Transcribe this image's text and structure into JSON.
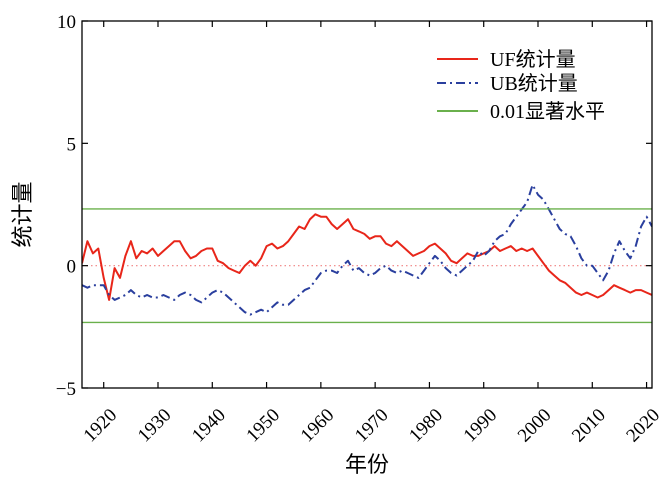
{
  "chart_data": {
    "type": "line",
    "xlabel": "年份",
    "ylabel": "统计量",
    "xlim": [
      1916,
      2021
    ],
    "ylim": [
      -5,
      10
    ],
    "xticks": [
      "1920",
      "1930",
      "1940",
      "1950",
      "1960",
      "1970",
      "1980",
      "1990",
      "2000",
      "2010",
      "2020"
    ],
    "yticks": [
      "−5",
      "0",
      "5",
      "10"
    ],
    "legend_position": "top-right",
    "grid": false,
    "series": [
      {
        "name": "UF统计量",
        "color": "#e8261a",
        "style": "solid",
        "x": [
          1916,
          1917,
          1918,
          1919,
          1920,
          1921,
          1922,
          1923,
          1924,
          1925,
          1926,
          1927,
          1928,
          1929,
          1930,
          1931,
          1932,
          1933,
          1934,
          1935,
          1936,
          1937,
          1938,
          1939,
          1940,
          1941,
          1942,
          1943,
          1944,
          1945,
          1946,
          1947,
          1948,
          1949,
          1950,
          1951,
          1952,
          1953,
          1954,
          1955,
          1956,
          1957,
          1958,
          1959,
          1960,
          1961,
          1962,
          1963,
          1964,
          1965,
          1966,
          1967,
          1968,
          1969,
          1970,
          1971,
          1972,
          1973,
          1974,
          1975,
          1976,
          1977,
          1978,
          1979,
          1980,
          1981,
          1982,
          1983,
          1984,
          1985,
          1986,
          1987,
          1988,
          1989,
          1990,
          1991,
          1992,
          1993,
          1994,
          1995,
          1996,
          1997,
          1998,
          1999,
          2000,
          2001,
          2002,
          2003,
          2004,
          2005,
          2006,
          2007,
          2008,
          2009,
          2010,
          2011,
          2012,
          2013,
          2014,
          2015,
          2016,
          2017,
          2018,
          2019,
          2020,
          2021
        ],
        "values": [
          0.1,
          1.0,
          0.5,
          0.7,
          -0.5,
          -1.4,
          -0.1,
          -0.5,
          0.4,
          1.0,
          0.3,
          0.6,
          0.5,
          0.7,
          0.4,
          0.6,
          0.8,
          1.0,
          1.0,
          0.6,
          0.3,
          0.4,
          0.6,
          0.7,
          0.7,
          0.2,
          0.1,
          -0.1,
          -0.2,
          -0.3,
          0.0,
          0.2,
          0.0,
          0.3,
          0.8,
          0.9,
          0.7,
          0.8,
          1.0,
          1.3,
          1.6,
          1.5,
          1.9,
          2.1,
          2.0,
          2.0,
          1.7,
          1.5,
          1.7,
          1.9,
          1.5,
          1.4,
          1.3,
          1.1,
          1.2,
          1.2,
          0.9,
          0.8,
          1.0,
          0.8,
          0.6,
          0.4,
          0.5,
          0.6,
          0.8,
          0.9,
          0.7,
          0.5,
          0.2,
          0.1,
          0.3,
          0.5,
          0.4,
          0.4,
          0.5,
          0.6,
          0.8,
          0.6,
          0.7,
          0.8,
          0.6,
          0.7,
          0.6,
          0.7,
          0.4,
          0.1,
          -0.2,
          -0.4,
          -0.6,
          -0.7,
          -0.9,
          -1.1,
          -1.2,
          -1.1,
          -1.2,
          -1.3,
          -1.2,
          -1.0,
          -0.8,
          -0.9,
          -1.0,
          -1.1,
          -1.0,
          -1.0,
          -1.1,
          -1.2
        ]
      },
      {
        "name": "UB统计量",
        "color": "#2a3f9e",
        "style": "dashdot",
        "x": [
          1916,
          1917,
          1918,
          1919,
          1920,
          1921,
          1922,
          1923,
          1924,
          1925,
          1926,
          1927,
          1928,
          1929,
          1930,
          1931,
          1932,
          1933,
          1934,
          1935,
          1936,
          1937,
          1938,
          1939,
          1940,
          1941,
          1942,
          1943,
          1944,
          1945,
          1946,
          1947,
          1948,
          1949,
          1950,
          1951,
          1952,
          1953,
          1954,
          1955,
          1956,
          1957,
          1958,
          1959,
          1960,
          1961,
          1962,
          1963,
          1964,
          1965,
          1966,
          1967,
          1968,
          1969,
          1970,
          1971,
          1972,
          1973,
          1974,
          1975,
          1976,
          1977,
          1978,
          1979,
          1980,
          1981,
          1982,
          1983,
          1984,
          1985,
          1986,
          1987,
          1988,
          1989,
          1990,
          1991,
          1992,
          1993,
          1994,
          1995,
          1996,
          1997,
          1998,
          1999,
          2000,
          2001,
          2002,
          2003,
          2004,
          2005,
          2006,
          2007,
          2008,
          2009,
          2010,
          2011,
          2012,
          2013,
          2014,
          2015,
          2016,
          2017,
          2018,
          2019,
          2020,
          2021
        ],
        "values": [
          -0.8,
          -0.9,
          -0.8,
          -0.8,
          -0.8,
          -1.2,
          -1.4,
          -1.3,
          -1.2,
          -1.0,
          -1.2,
          -1.3,
          -1.2,
          -1.3,
          -1.3,
          -1.2,
          -1.3,
          -1.4,
          -1.2,
          -1.1,
          -1.2,
          -1.4,
          -1.5,
          -1.3,
          -1.1,
          -1.0,
          -1.1,
          -1.3,
          -1.5,
          -1.7,
          -1.9,
          -2.0,
          -1.9,
          -1.8,
          -1.9,
          -1.7,
          -1.5,
          -1.6,
          -1.6,
          -1.4,
          -1.2,
          -1.0,
          -0.9,
          -0.6,
          -0.3,
          -0.2,
          -0.2,
          -0.3,
          0.0,
          0.2,
          -0.2,
          -0.1,
          -0.3,
          -0.4,
          -0.3,
          -0.1,
          0.0,
          -0.2,
          -0.3,
          -0.2,
          -0.3,
          -0.4,
          -0.5,
          -0.2,
          0.1,
          0.4,
          0.2,
          -0.1,
          -0.3,
          -0.4,
          -0.2,
          0.0,
          0.2,
          0.6,
          0.4,
          0.6,
          1.0,
          1.2,
          1.3,
          1.7,
          2.0,
          2.3,
          2.6,
          3.3,
          2.9,
          2.7,
          2.3,
          1.9,
          1.5,
          1.3,
          1.2,
          0.8,
          0.3,
          0.0,
          0.0,
          -0.3,
          -0.6,
          -0.2,
          0.5,
          1.0,
          0.6,
          0.3,
          0.8,
          1.6,
          2.0,
          1.6
        ]
      },
      {
        "name": "0.01显著水平",
        "color": "#6ab04c",
        "style": "solid",
        "values": [
          2.32,
          -2.32
        ]
      }
    ],
    "reference_line": {
      "y": 0,
      "style": "dotted",
      "color": "#f08080"
    }
  }
}
